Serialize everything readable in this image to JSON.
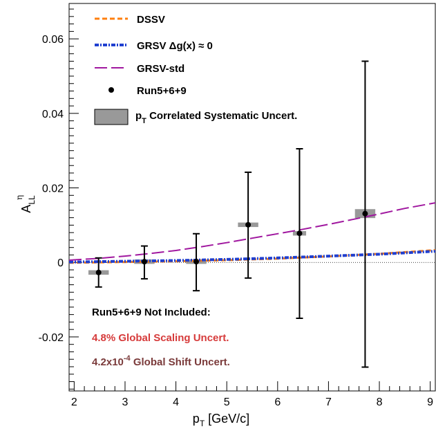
{
  "chart_data": {
    "type": "scatter",
    "xlim": [
      1.9,
      9.1
    ],
    "ylim": [
      -0.0345,
      0.0695
    ],
    "x_ticks": [
      "2",
      "3",
      "4",
      "5",
      "6",
      "7",
      "8",
      "9"
    ],
    "x_tick_values": [
      2,
      3,
      4,
      5,
      6,
      7,
      8,
      9
    ],
    "y_ticks": [
      "-0.02",
      "0",
      "0.02",
      "0.04",
      "0.06"
    ],
    "y_tick_values": [
      -0.02,
      0,
      0.02,
      0.04,
      0.06
    ],
    "xlabel": "p",
    "xlabel_sub": "T",
    "xlabel_unit": " [GeV/c]",
    "ylabel": "A",
    "ylabel_sub": "LL",
    "ylabel_sup": "η",
    "grid": false,
    "legend_position": "top-left",
    "zero_line": true,
    "legend": [
      {
        "key": "dssv",
        "label": "DSSV",
        "marker": "dash-orange"
      },
      {
        "key": "grsv0",
        "label": "GRSV Δg(x) ≈ 0",
        "marker": "dashdot-blue"
      },
      {
        "key": "grsvstd",
        "label": "GRSV-std",
        "marker": "longdash-purple"
      },
      {
        "key": "data",
        "label": "Run5+6+9",
        "marker": "dot"
      },
      {
        "key": "sys",
        "label": "p",
        "label_sub": "T",
        "label_rest": " Correlated Systematic Uncert.",
        "marker": "gray-box"
      }
    ],
    "series": [
      {
        "name": "Run5+6+9",
        "type": "points",
        "color": "#000000",
        "x": [
          2.48,
          3.38,
          4.4,
          5.42,
          6.43,
          7.72
        ],
        "y": [
          -0.0027,
          0.0002,
          0.0002,
          0.0101,
          0.0078,
          0.0131
        ],
        "err_low": [
          0.0039,
          0.0046,
          0.0078,
          0.0143,
          0.0228,
          0.0412
        ],
        "err_high": [
          0.0039,
          0.0042,
          0.0075,
          0.0141,
          0.0227,
          0.0409
        ],
        "sys_halfwidth": [
          0.2,
          0.2,
          0.2,
          0.2,
          0.13,
          0.2
        ],
        "sys_halfheight": [
          0.0006,
          0.0006,
          0.0006,
          0.0006,
          0.0006,
          0.0012
        ]
      },
      {
        "name": "DSSV",
        "type": "curve",
        "style": "dash",
        "color": "#ff7f0e",
        "x": [
          1.9,
          3,
          4,
          5,
          6,
          7,
          8,
          9.1
        ],
        "y": [
          -0.0001,
          0.0001,
          0.0003,
          0.0006,
          0.001,
          0.0016,
          0.0023,
          0.0033
        ]
      },
      {
        "name": "GRSV Δg(x) ≈ 0",
        "type": "curve",
        "style": "dashdot",
        "color": "#1f3fd0",
        "x": [
          1.9,
          3,
          4,
          5,
          6,
          7,
          8,
          9.1
        ],
        "y": [
          0.0001,
          0.0003,
          0.0005,
          0.0008,
          0.0012,
          0.0017,
          0.0022,
          0.003
        ]
      },
      {
        "name": "GRSV-std",
        "type": "curve",
        "style": "longdash",
        "color": "#a0179f",
        "x": [
          1.9,
          2.5,
          3,
          3.5,
          4,
          4.5,
          5,
          5.5,
          6,
          6.5,
          7,
          7.5,
          8,
          8.5,
          9.1
        ],
        "y": [
          0.0006,
          0.0011,
          0.0017,
          0.0024,
          0.0032,
          0.0042,
          0.0053,
          0.0065,
          0.0077,
          0.0089,
          0.0102,
          0.0116,
          0.013,
          0.0145,
          0.016
        ]
      }
    ],
    "notes": [
      {
        "text": "Run5+6+9 Not Included:",
        "color": "#000000"
      },
      {
        "text": "4.8% Global Scaling Uncert.",
        "color": "#d63a3a"
      },
      {
        "text": "4.2x10",
        "sup": "-4",
        "rest": " Global Shift Uncert.",
        "color": "#7a3a3a"
      }
    ]
  }
}
